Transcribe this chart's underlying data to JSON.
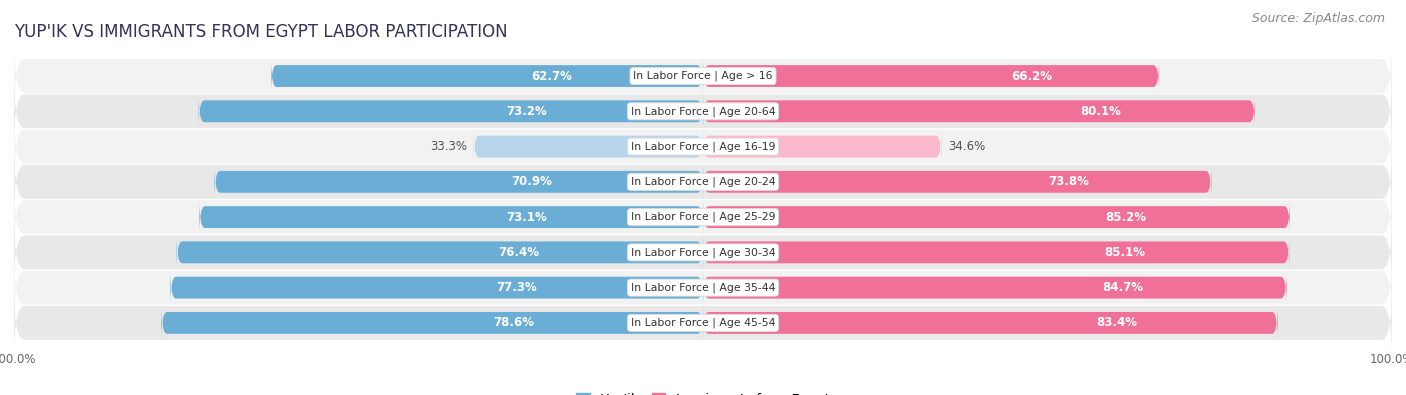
{
  "title": "Yup'ik vs Immigrants from Egypt Labor Participation",
  "source": "Source: ZipAtlas.com",
  "categories": [
    "In Labor Force | Age > 16",
    "In Labor Force | Age 20-64",
    "In Labor Force | Age 16-19",
    "In Labor Force | Age 20-24",
    "In Labor Force | Age 25-29",
    "In Labor Force | Age 30-34",
    "In Labor Force | Age 35-44",
    "In Labor Force | Age 45-54"
  ],
  "yupik_values": [
    62.7,
    73.2,
    33.3,
    70.9,
    73.1,
    76.4,
    77.3,
    78.6
  ],
  "egypt_values": [
    66.2,
    80.1,
    34.6,
    73.8,
    85.2,
    85.1,
    84.7,
    83.4
  ],
  "yupik_color": "#6aaed6",
  "egypt_color": "#f07097",
  "yupik_color_light": "#b8d4ea",
  "egypt_color_light": "#f9b8cc",
  "row_bg_color_odd": "#f2f2f2",
  "row_bg_color_even": "#e8e8e8",
  "label_color_dark": "#555555",
  "label_color_white": "#ffffff",
  "title_fontsize": 12,
  "source_fontsize": 9,
  "bar_height": 0.62,
  "max_value": 100.0,
  "legend_yupik": "Yup'ik",
  "legend_egypt": "Immigrants from Egypt"
}
